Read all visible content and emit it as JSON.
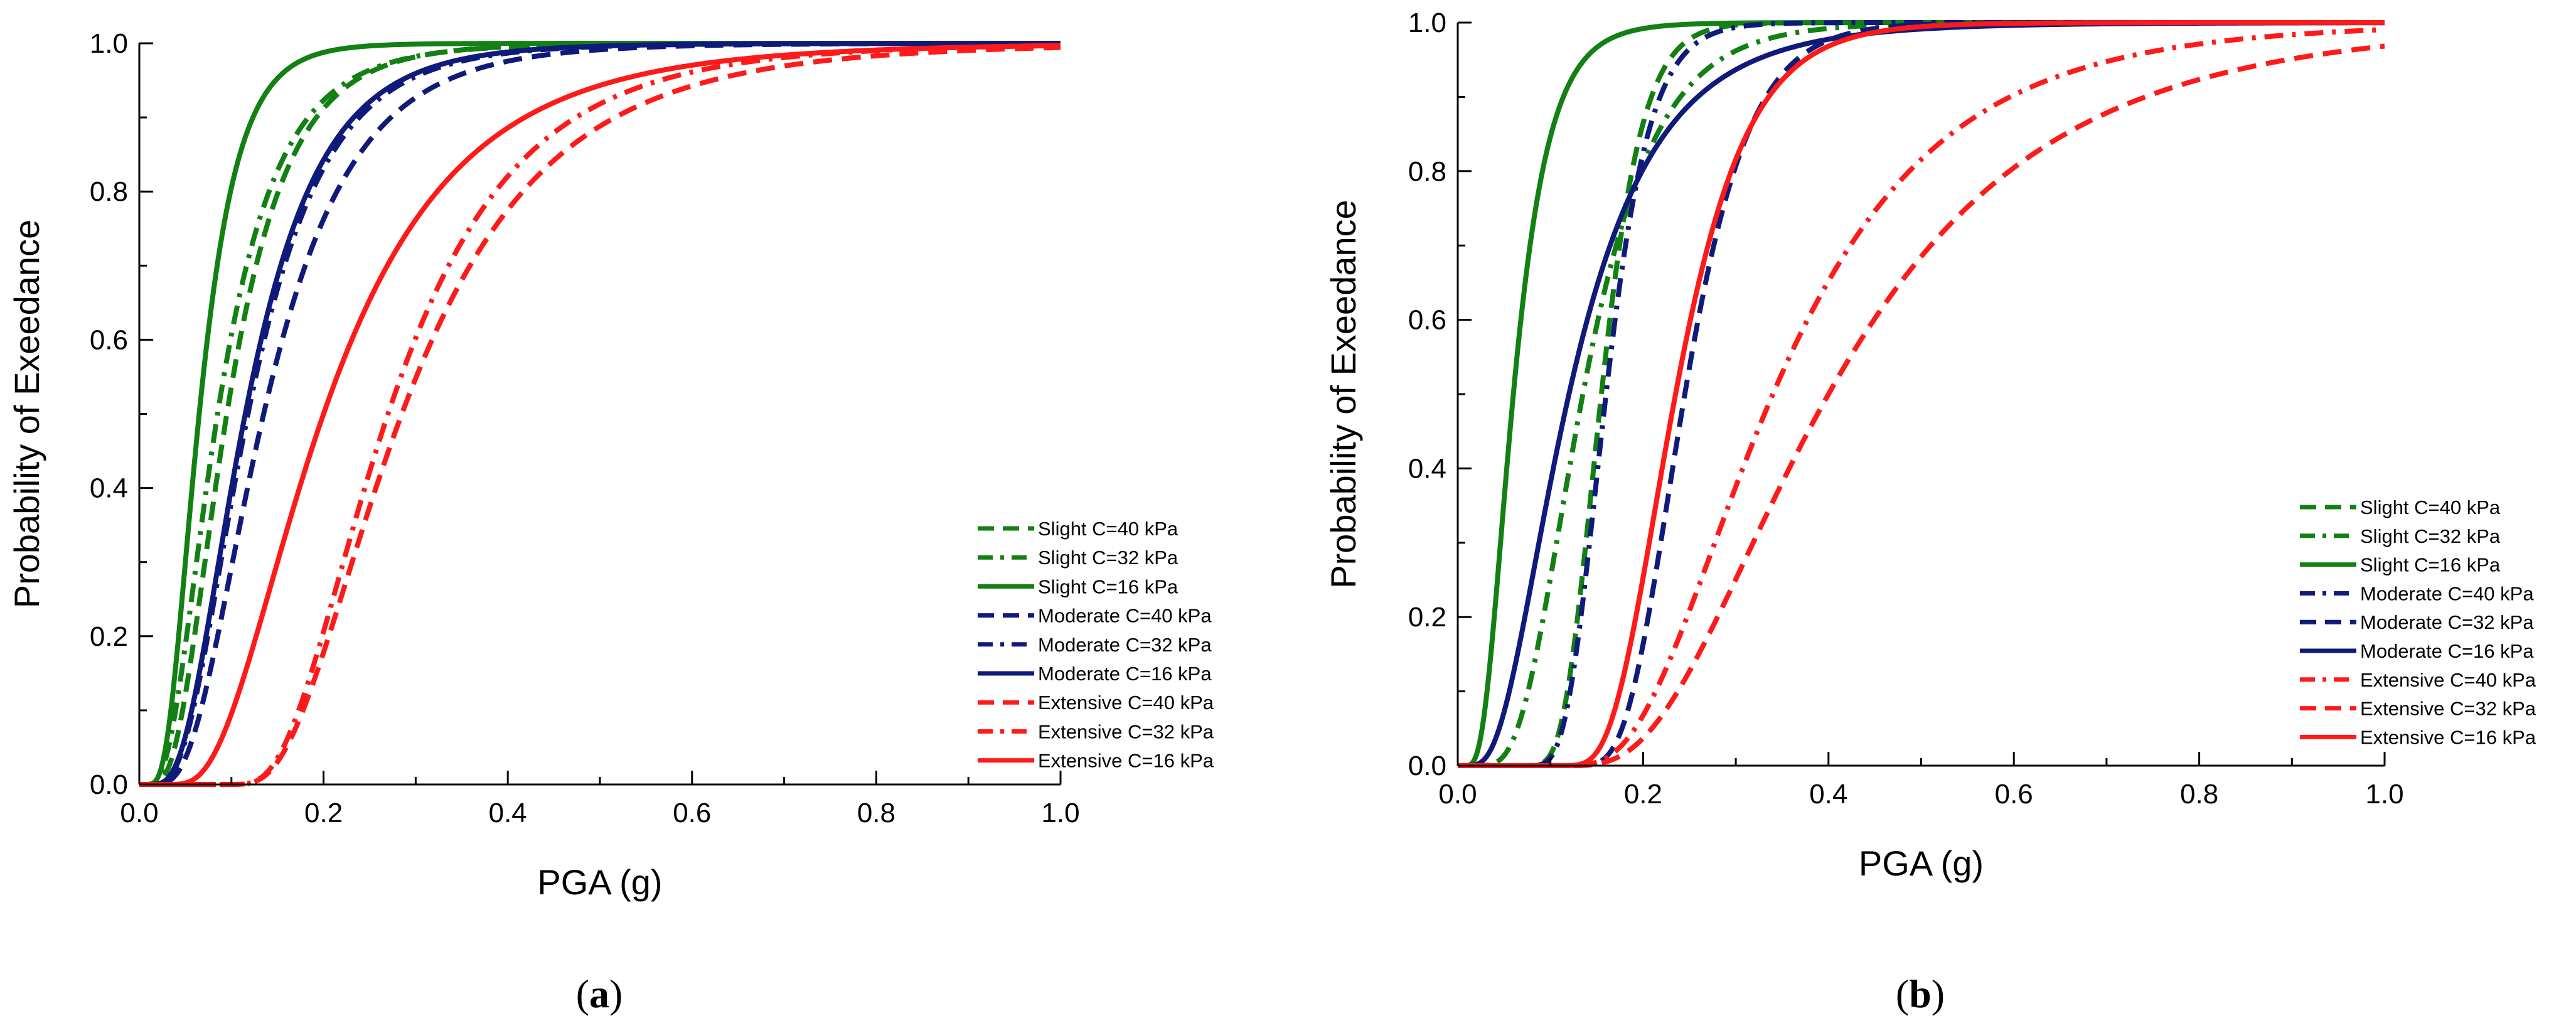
{
  "colors": {
    "slight": "#138013",
    "moderate": "#0f1a7a",
    "extensive": "#ff1a1a"
  },
  "chart_data": [
    {
      "type": "line",
      "panel_label": "(a)",
      "panel_letter": "a",
      "xlabel": "PGA (g)",
      "ylabel": "Probability of Exeedance",
      "xlim": [
        0,
        1
      ],
      "ylim": [
        0,
        1
      ],
      "x_ticks": [
        "0.0",
        "0.2",
        "0.4",
        "0.6",
        "0.8",
        "1.0"
      ],
      "y_ticks": [
        "0.0",
        "0.2",
        "0.4",
        "0.6",
        "0.8",
        "1.0"
      ],
      "legend_position": "lower-right",
      "series": [
        {
          "name": "Slight C=40 kPa",
          "group": "slight",
          "style": "dash",
          "median": 0.095,
          "beta": 0.55,
          "shift": 0
        },
        {
          "name": "Slight C=32 kPa",
          "group": "slight",
          "style": "dashdot",
          "median": 0.085,
          "beta": 0.6,
          "shift": 0
        },
        {
          "name": "Slight C=16 kPa",
          "group": "slight",
          "style": "solid",
          "median": 0.065,
          "beta": 0.5,
          "shift": 0
        },
        {
          "name": "Moderate C=40 kPa",
          "group": "moderate",
          "style": "dash",
          "median": 0.135,
          "beta": 0.55,
          "shift": 0
        },
        {
          "name": "Moderate C=32 kPa",
          "group": "moderate",
          "style": "dashdot",
          "median": 0.118,
          "beta": 0.55,
          "shift": 0
        },
        {
          "name": "Moderate C=16 kPa",
          "group": "moderate",
          "style": "solid",
          "median": 0.115,
          "beta": 0.55,
          "shift": 0
        },
        {
          "name": "Extensive C=40 kPa",
          "group": "extensive",
          "style": "dash",
          "median": 0.2,
          "beta": 0.6,
          "shift": 0.085
        },
        {
          "name": "Extensive C=32 kPa",
          "group": "extensive",
          "style": "dashdot",
          "median": 0.185,
          "beta": 0.58,
          "shift": 0.085
        },
        {
          "name": "Extensive C=16 kPa",
          "group": "extensive",
          "style": "solid",
          "median": 0.18,
          "beta": 0.62,
          "shift": 0.02
        }
      ]
    },
    {
      "type": "line",
      "panel_label": "(b)",
      "panel_letter": "b",
      "xlabel": "PGA (g)",
      "ylabel": "Probability of Exeedance",
      "xlim": [
        0,
        1
      ],
      "ylim": [
        0,
        1
      ],
      "x_ticks": [
        "0.0",
        "0.2",
        "0.4",
        "0.6",
        "0.8",
        "1.0"
      ],
      "y_ticks": [
        "0.0",
        "0.2",
        "0.4",
        "0.6",
        "0.8",
        "1.0"
      ],
      "legend_position": "lower-right",
      "series": [
        {
          "name": "Slight C=40 kPa",
          "group": "slight",
          "style": "dash",
          "median": 0.115,
          "beta": 0.3,
          "shift": 0.04
        },
        {
          "name": "Slight C=32 kPa",
          "group": "slight",
          "style": "dashdot",
          "median": 0.135,
          "beta": 0.45,
          "shift": 0
        },
        {
          "name": "Slight C=16 kPa",
          "group": "slight",
          "style": "solid",
          "median": 0.06,
          "beta": 0.5,
          "shift": 0
        },
        {
          "name": "Moderate C=40 kPa",
          "group": "moderate",
          "style": "dashdot",
          "median": 0.115,
          "beta": 0.32,
          "shift": 0.045
        },
        {
          "name": "Moderate C=32 kPa",
          "group": "moderate",
          "style": "dash",
          "median": 0.155,
          "beta": 0.35,
          "shift": 0.09
        },
        {
          "name": "Moderate C=16 kPa",
          "group": "moderate",
          "style": "solid",
          "median": 0.12,
          "beta": 0.6,
          "shift": 0
        },
        {
          "name": "Extensive C=40 kPa",
          "group": "extensive",
          "style": "dashdot",
          "median": 0.25,
          "beta": 0.55,
          "shift": 0.09
        },
        {
          "name": "Extensive C=32 kPa",
          "group": "extensive",
          "style": "dash",
          "median": 0.31,
          "beta": 0.58,
          "shift": 0.09
        },
        {
          "name": "Extensive C=16 kPa",
          "group": "extensive",
          "style": "solid",
          "median": 0.15,
          "beta": 0.4,
          "shift": 0.085
        }
      ]
    }
  ]
}
